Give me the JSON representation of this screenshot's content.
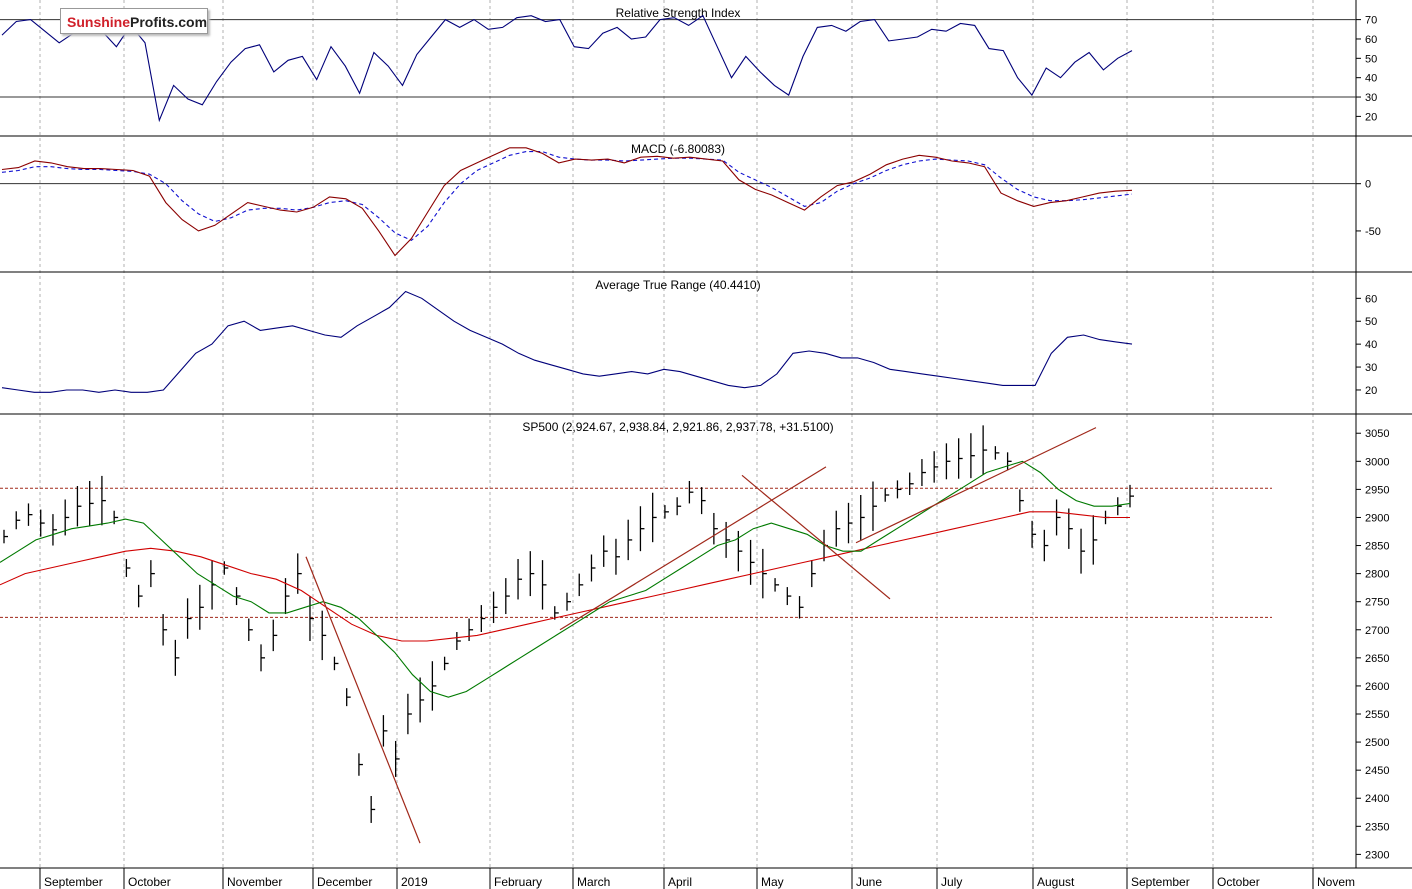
{
  "brand": {
    "part1": "Sunshine",
    "part2": "Profits.com"
  },
  "colors": {
    "price": "#000000",
    "rsi": "#00007a",
    "macd": "#8b0000",
    "signal": "#1010d0",
    "atr": "#00007a",
    "ma_short": "#007a00",
    "ma_long": "#d00000",
    "trend": "#a0281a",
    "level": "#a0281a",
    "grid": "#b0b0b0"
  },
  "months": [
    "September",
    "October",
    "November",
    "December",
    "2019",
    "February",
    "March",
    "April",
    "May",
    "June",
    "July",
    "August",
    "September",
    "October",
    "Novem"
  ],
  "chart_data": [
    {
      "type": "line",
      "title": "Relative Strength Index",
      "yticks": [
        70,
        60,
        50,
        40,
        30,
        20
      ],
      "ylim": [
        14,
        76
      ],
      "levels": [
        70,
        30
      ],
      "series": [
        {
          "values": [
            62,
            69,
            70,
            64,
            58,
            63,
            66,
            64,
            56,
            67,
            58,
            18,
            36,
            29,
            26,
            38,
            48,
            55,
            57,
            43,
            49,
            51,
            39,
            56,
            46,
            32,
            53,
            46,
            36,
            52,
            61,
            70,
            66,
            70,
            65,
            66,
            71,
            72,
            69,
            70,
            56,
            55,
            63,
            66,
            60,
            61,
            70,
            71,
            67,
            72,
            56,
            40,
            51,
            43,
            36,
            31,
            51,
            66,
            67,
            64,
            69,
            70,
            59,
            60,
            61,
            65,
            64,
            68,
            67,
            55,
            54,
            40,
            31,
            45,
            40,
            48,
            53,
            44,
            50,
            54
          ]
        }
      ]
    },
    {
      "type": "line",
      "title": "MACD (-6.80083)",
      "yticks": [
        0,
        -50
      ],
      "ylim": [
        -85,
        42
      ],
      "levels": [
        0
      ],
      "series": [
        {
          "name": "MACD",
          "values": [
            15,
            17,
            24,
            22,
            18,
            16,
            16,
            15,
            14,
            8,
            -20,
            -38,
            -50,
            -44,
            -32,
            -20,
            -24,
            -28,
            -30,
            -25,
            -14,
            -16,
            -26,
            -50,
            -76,
            -58,
            -30,
            -2,
            14,
            22,
            30,
            38,
            38,
            32,
            22,
            26,
            25,
            26,
            22,
            28,
            29,
            27,
            28,
            26,
            24,
            4,
            -6,
            -12,
            -20,
            -28,
            -14,
            -2,
            2,
            10,
            20,
            26,
            30,
            28,
            24,
            22,
            18,
            -10,
            -18,
            -24,
            -20,
            -18,
            -14,
            -10,
            -8,
            -7
          ]
        },
        {
          "name": "Signal",
          "values": [
            12,
            14,
            18,
            18,
            16,
            15,
            15,
            14,
            13,
            10,
            0,
            -18,
            -32,
            -40,
            -36,
            -28,
            -26,
            -26,
            -28,
            -25,
            -20,
            -18,
            -22,
            -36,
            -52,
            -60,
            -45,
            -20,
            0,
            14,
            22,
            30,
            34,
            34,
            28,
            26,
            25,
            25,
            24,
            25,
            26,
            27,
            27,
            26,
            25,
            12,
            4,
            -4,
            -14,
            -24,
            -20,
            -8,
            0,
            6,
            14,
            20,
            24,
            26,
            25,
            24,
            20,
            6,
            -6,
            -14,
            -18,
            -18,
            -17,
            -15,
            -13,
            -11
          ]
        }
      ]
    },
    {
      "type": "line",
      "title": "Average True Range (40.4410)",
      "yticks": [
        60,
        50,
        40,
        30,
        20
      ],
      "ylim": [
        13,
        68
      ],
      "series": [
        {
          "values": [
            21,
            20,
            19,
            19,
            20,
            20,
            19,
            20,
            19,
            19,
            20,
            28,
            36,
            40,
            48,
            50,
            46,
            47,
            48,
            46,
            44,
            43,
            48,
            52,
            56,
            63,
            60,
            55,
            50,
            46,
            43,
            40,
            36,
            33,
            31,
            29,
            27,
            26,
            27,
            28,
            27,
            29,
            28,
            26,
            24,
            22,
            21,
            22,
            27,
            36,
            37,
            36,
            34,
            34,
            32,
            29,
            28,
            27,
            26,
            25,
            24,
            23,
            22,
            22,
            22,
            36,
            43,
            44,
            42,
            41,
            40
          ]
        }
      ]
    },
    {
      "type": "bar",
      "title": "SP500 (2,924.67, 2,938.84, 2,921.86, 2,937.78, +31.5100)",
      "yticks": [
        3050,
        3000,
        2950,
        2900,
        2850,
        2800,
        2750,
        2700,
        2650,
        2600,
        2550,
        2500,
        2450,
        2400,
        2350,
        2300
      ],
      "ylim": [
        2290,
        3070
      ],
      "levels": [
        2952,
        2722
      ],
      "close": [
        2866,
        2895,
        2905,
        2890,
        2878,
        2900,
        2920,
        2925,
        2930,
        2900,
        2810,
        2760,
        2800,
        2700,
        2650,
        2720,
        2740,
        2780,
        2810,
        2760,
        2700,
        2650,
        2690,
        2760,
        2800,
        2720,
        2690,
        2640,
        2580,
        2460,
        2380,
        2520,
        2470,
        2550,
        2575,
        2600,
        2640,
        2680,
        2700,
        2720,
        2740,
        2760,
        2790,
        2800,
        2780,
        2730,
        2750,
        2780,
        2810,
        2840,
        2830,
        2860,
        2880,
        2900,
        2910,
        2920,
        2945,
        2930,
        2880,
        2860,
        2840,
        2820,
        2800,
        2780,
        2760,
        2740,
        2800,
        2850,
        2880,
        2890,
        2900,
        2920,
        2940,
        2950,
        2960,
        2980,
        2990,
        3000,
        3005,
        3010,
        3020,
        3015,
        3000,
        2930,
        2870,
        2850,
        2900,
        2880,
        2840,
        2860,
        2900,
        2920,
        2938
      ],
      "ma_short": [
        2820,
        2840,
        2860,
        2870,
        2880,
        2885,
        2890,
        2897,
        2890,
        2860,
        2830,
        2800,
        2780,
        2760,
        2750,
        2730,
        2730,
        2740,
        2750,
        2740,
        2720,
        2690,
        2660,
        2620,
        2590,
        2580,
        2590,
        2610,
        2630,
        2650,
        2670,
        2690,
        2710,
        2730,
        2750,
        2760,
        2770,
        2790,
        2810,
        2830,
        2850,
        2860,
        2880,
        2890,
        2880,
        2870,
        2850,
        2840,
        2840,
        2860,
        2880,
        2900,
        2920,
        2940,
        2960,
        2980,
        2990,
        3000,
        2980,
        2950,
        2930,
        2920,
        2920,
        2925
      ],
      "ma_long": [
        2780,
        2800,
        2810,
        2820,
        2830,
        2840,
        2845,
        2840,
        2830,
        2815,
        2800,
        2790,
        2770,
        2740,
        2710,
        2690,
        2680,
        2680,
        2685,
        2690,
        2700,
        2710,
        2720,
        2730,
        2740,
        2750,
        2760,
        2770,
        2780,
        2790,
        2800,
        2810,
        2820,
        2830,
        2840,
        2850,
        2860,
        2870,
        2880,
        2890,
        2900,
        2910,
        2910,
        2905,
        2900,
        2900
      ]
    }
  ]
}
